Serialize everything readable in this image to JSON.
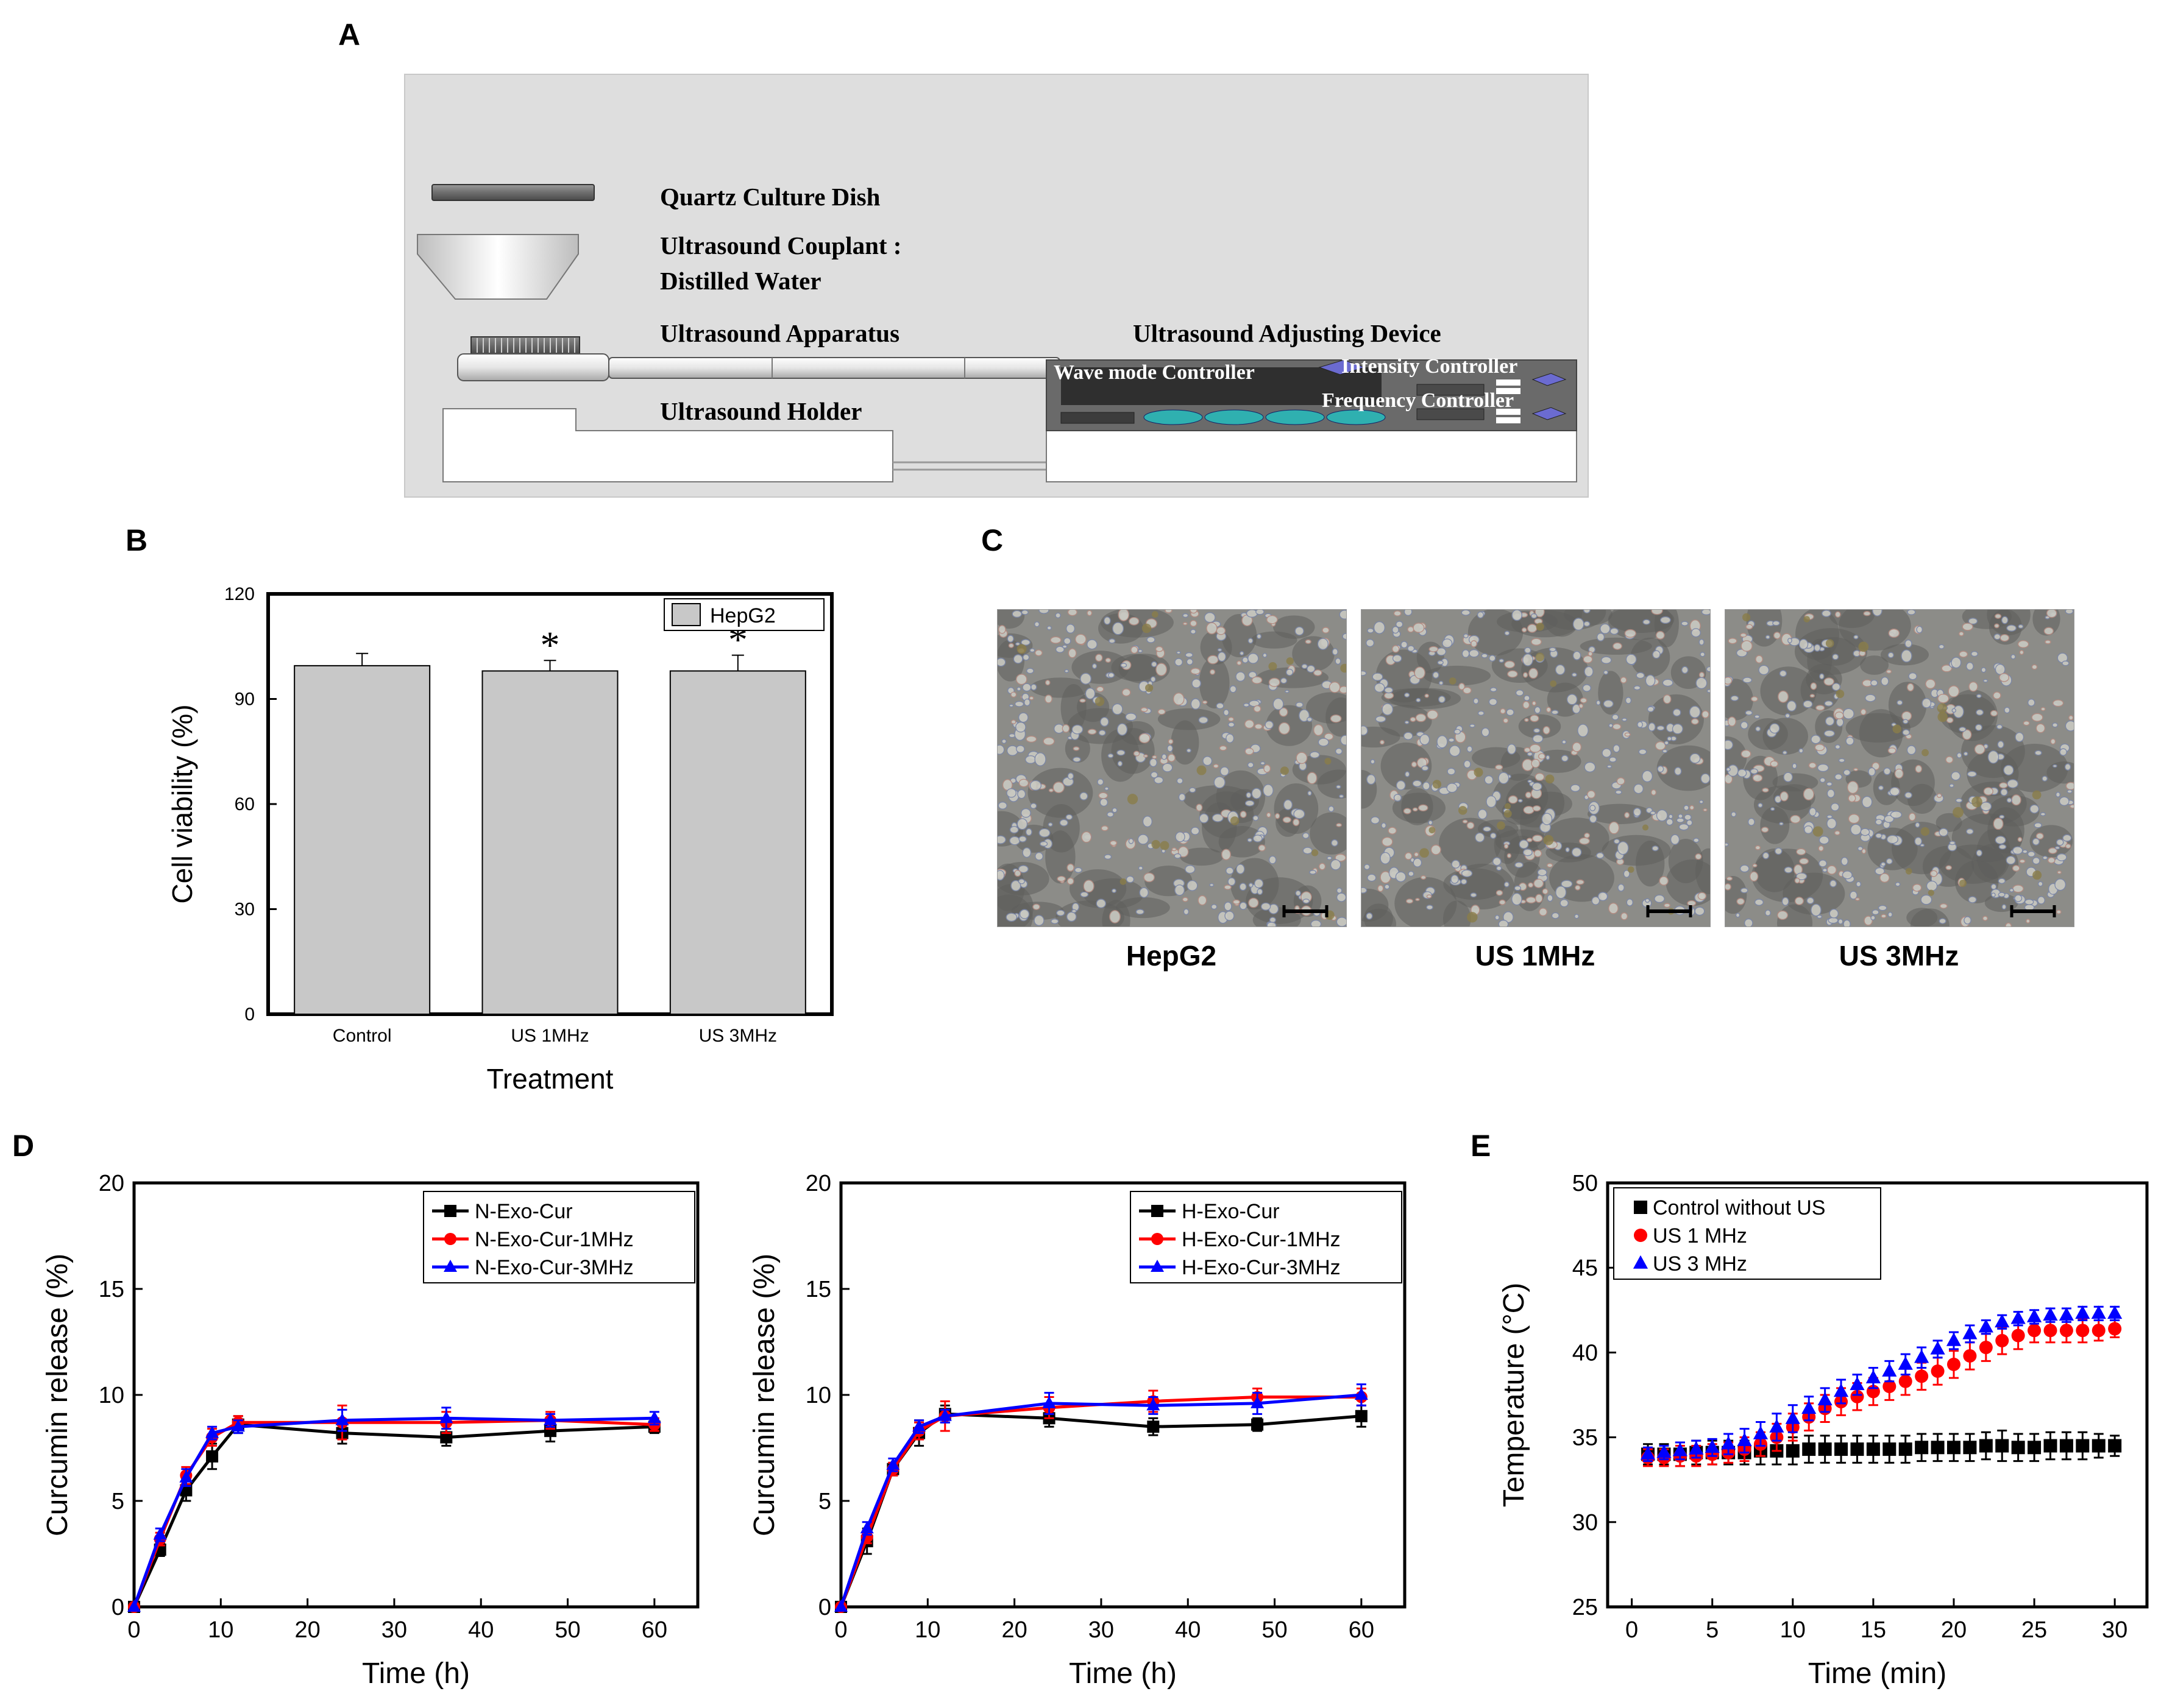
{
  "panels": {
    "A": {
      "letter": "A",
      "labels": {
        "dish": "Quartz Culture Dish",
        "couplant_1": "Ultrasound Couplant :",
        "couplant_2": "Distilled Water",
        "apparatus": "Ultrasound Apparatus",
        "holder": "Ultrasound Holder",
        "device": "Ultrasound Adjusting Device",
        "wave": "Wave mode Controller",
        "intensity": "Intensity Controller",
        "frequency": "Frequency Controller"
      }
    },
    "B": {
      "letter": "B"
    },
    "C": {
      "letter": "C",
      "captions": [
        "HepG2",
        "US 1MHz",
        "US 3MHz"
      ]
    },
    "D": {
      "letter": "D"
    },
    "E": {
      "letter": "E"
    }
  },
  "chart_data": [
    {
      "id": "B",
      "type": "bar",
      "title": "",
      "xlabel": "Treatment",
      "ylabel": "Cell viability (%)",
      "ylim": [
        0,
        120
      ],
      "yticks": [
        0,
        30,
        60,
        90,
        120
      ],
      "categories": [
        "Control",
        "US 1MHz",
        "US 3MHz"
      ],
      "series": [
        {
          "name": "HepG2",
          "values": [
            99.5,
            98,
            98
          ],
          "errors": [
            3.5,
            3,
            4.5
          ],
          "color": "#c8c8c8"
        }
      ],
      "annotations": [
        "",
        "*",
        "*"
      ],
      "legend": "top-right",
      "grid": false
    },
    {
      "id": "D-left",
      "type": "line",
      "xlabel": "Time (h)",
      "ylabel": "Curcumin release (%)",
      "xlim": [
        0,
        65
      ],
      "ylim": [
        0,
        20
      ],
      "xticks": [
        0,
        10,
        20,
        30,
        40,
        50,
        60
      ],
      "yticks": [
        0,
        5,
        10,
        15,
        20
      ],
      "x": [
        0,
        3,
        6,
        9,
        12,
        24,
        36,
        48,
        60
      ],
      "series": [
        {
          "name": "N-Exo-Cur",
          "color": "#000000",
          "marker": "square",
          "values": [
            0,
            2.7,
            5.5,
            7.1,
            8.6,
            8.2,
            8.0,
            8.3,
            8.5
          ],
          "errors": [
            0,
            0.3,
            0.5,
            0.6,
            0.4,
            0.5,
            0.4,
            0.5,
            0.3
          ]
        },
        {
          "name": "N-Exo-Cur-1MHz",
          "color": "#ff0000",
          "marker": "circle",
          "values": [
            0,
            3.2,
            6.2,
            8.0,
            8.7,
            8.7,
            8.7,
            8.8,
            8.6
          ],
          "errors": [
            0,
            0.3,
            0.4,
            0.4,
            0.3,
            0.8,
            0.5,
            0.4,
            0.3
          ]
        },
        {
          "name": "N-Exo-Cur-3MHz",
          "color": "#0000ff",
          "marker": "triangle",
          "values": [
            0,
            3.4,
            6.1,
            8.2,
            8.5,
            8.8,
            8.9,
            8.8,
            8.9
          ],
          "errors": [
            0,
            0.3,
            0.4,
            0.3,
            0.3,
            0.5,
            0.5,
            0.3,
            0.3
          ]
        }
      ],
      "legend": "top-right"
    },
    {
      "id": "D-right",
      "type": "line",
      "xlabel": "Time (h)",
      "ylabel": "Curcumin release (%)",
      "xlim": [
        0,
        65
      ],
      "ylim": [
        0,
        20
      ],
      "xticks": [
        0,
        10,
        20,
        30,
        40,
        50,
        60
      ],
      "yticks": [
        0,
        5,
        10,
        15,
        20
      ],
      "x": [
        0,
        3,
        6,
        9,
        12,
        24,
        36,
        48,
        60
      ],
      "series": [
        {
          "name": "H-Exo-Cur",
          "color": "#000000",
          "marker": "square",
          "values": [
            0,
            3.1,
            6.5,
            8.2,
            9.1,
            8.9,
            8.5,
            8.6,
            9.0
          ],
          "errors": [
            0,
            0.6,
            0.3,
            0.6,
            0.4,
            0.4,
            0.4,
            0.3,
            0.5
          ]
        },
        {
          "name": "H-Exo-Cur-1MHz",
          "color": "#ff0000",
          "marker": "circle",
          "values": [
            0,
            3.3,
            6.5,
            8.3,
            9.0,
            9.4,
            9.7,
            9.9,
            9.9
          ],
          "errors": [
            0,
            0.3,
            0.3,
            0.4,
            0.7,
            0.5,
            0.5,
            0.4,
            0.4
          ]
        },
        {
          "name": "H-Exo-Cur-3MHz",
          "color": "#0000ff",
          "marker": "triangle",
          "values": [
            0,
            3.7,
            6.7,
            8.5,
            9.0,
            9.6,
            9.5,
            9.6,
            10.0
          ],
          "errors": [
            0,
            0.3,
            0.3,
            0.3,
            0.3,
            0.5,
            0.4,
            0.5,
            0.5
          ]
        }
      ],
      "legend": "top-right"
    },
    {
      "id": "E",
      "type": "scatter",
      "xlabel": "Time (min)",
      "ylabel": "Temperature (°C)",
      "xlim": [
        -1.5,
        32
      ],
      "ylim": [
        25,
        50
      ],
      "xticks": [
        0,
        5,
        10,
        15,
        20,
        25,
        30
      ],
      "yticks": [
        25,
        30,
        35,
        40,
        45,
        50
      ],
      "x": [
        1,
        2,
        3,
        4,
        5,
        6,
        7,
        8,
        9,
        10,
        11,
        12,
        13,
        14,
        15,
        16,
        17,
        18,
        19,
        20,
        21,
        22,
        23,
        24,
        25,
        26,
        27,
        28,
        29,
        30
      ],
      "series": [
        {
          "name": "Control without US",
          "color": "#000000",
          "marker": "square",
          "values": [
            34.0,
            34.0,
            34.0,
            34.1,
            34.1,
            34.1,
            34.1,
            34.2,
            34.2,
            34.2,
            34.3,
            34.3,
            34.3,
            34.3,
            34.3,
            34.3,
            34.3,
            34.4,
            34.4,
            34.4,
            34.4,
            34.5,
            34.5,
            34.4,
            34.4,
            34.5,
            34.5,
            34.5,
            34.5,
            34.5
          ],
          "errors": [
            0.6,
            0.6,
            0.7,
            0.7,
            0.7,
            0.7,
            0.7,
            0.8,
            0.8,
            0.8,
            0.8,
            0.8,
            0.8,
            0.8,
            0.8,
            0.8,
            0.8,
            0.8,
            0.8,
            0.8,
            0.8,
            0.8,
            0.9,
            0.8,
            0.8,
            0.8,
            0.8,
            0.8,
            0.7,
            0.6
          ]
        },
        {
          "name": "US 1 MHz",
          "color": "#ff0000",
          "marker": "circle",
          "values": [
            33.8,
            33.8,
            33.9,
            33.9,
            34.0,
            34.1,
            34.3,
            34.6,
            35.0,
            35.6,
            36.2,
            36.7,
            37.1,
            37.4,
            37.7,
            38.0,
            38.3,
            38.6,
            38.9,
            39.3,
            39.8,
            40.3,
            40.7,
            41.0,
            41.3,
            41.3,
            41.3,
            41.3,
            41.3,
            41.4
          ],
          "errors": [
            0.5,
            0.5,
            0.6,
            0.6,
            0.6,
            0.6,
            0.7,
            0.7,
            0.8,
            0.8,
            0.8,
            0.8,
            0.8,
            0.8,
            0.8,
            0.8,
            0.8,
            0.8,
            0.8,
            0.8,
            0.8,
            0.8,
            0.8,
            0.8,
            0.7,
            0.7,
            0.7,
            0.7,
            0.6,
            0.5
          ]
        },
        {
          "name": "US 3 MHz",
          "color": "#0000ff",
          "marker": "triangle",
          "values": [
            34.0,
            34.1,
            34.2,
            34.3,
            34.4,
            34.6,
            34.8,
            35.2,
            35.6,
            36.1,
            36.7,
            37.2,
            37.7,
            38.1,
            38.5,
            38.9,
            39.3,
            39.7,
            40.2,
            40.7,
            41.1,
            41.5,
            41.8,
            42.0,
            42.1,
            42.2,
            42.2,
            42.3,
            42.3,
            42.3
          ],
          "errors": [
            0.4,
            0.4,
            0.5,
            0.5,
            0.5,
            0.6,
            0.7,
            0.7,
            0.8,
            0.8,
            0.7,
            0.7,
            0.7,
            0.6,
            0.6,
            0.6,
            0.6,
            0.6,
            0.5,
            0.5,
            0.5,
            0.4,
            0.4,
            0.4,
            0.4,
            0.4,
            0.4,
            0.4,
            0.4,
            0.4
          ]
        }
      ],
      "legend": "top-left"
    }
  ]
}
